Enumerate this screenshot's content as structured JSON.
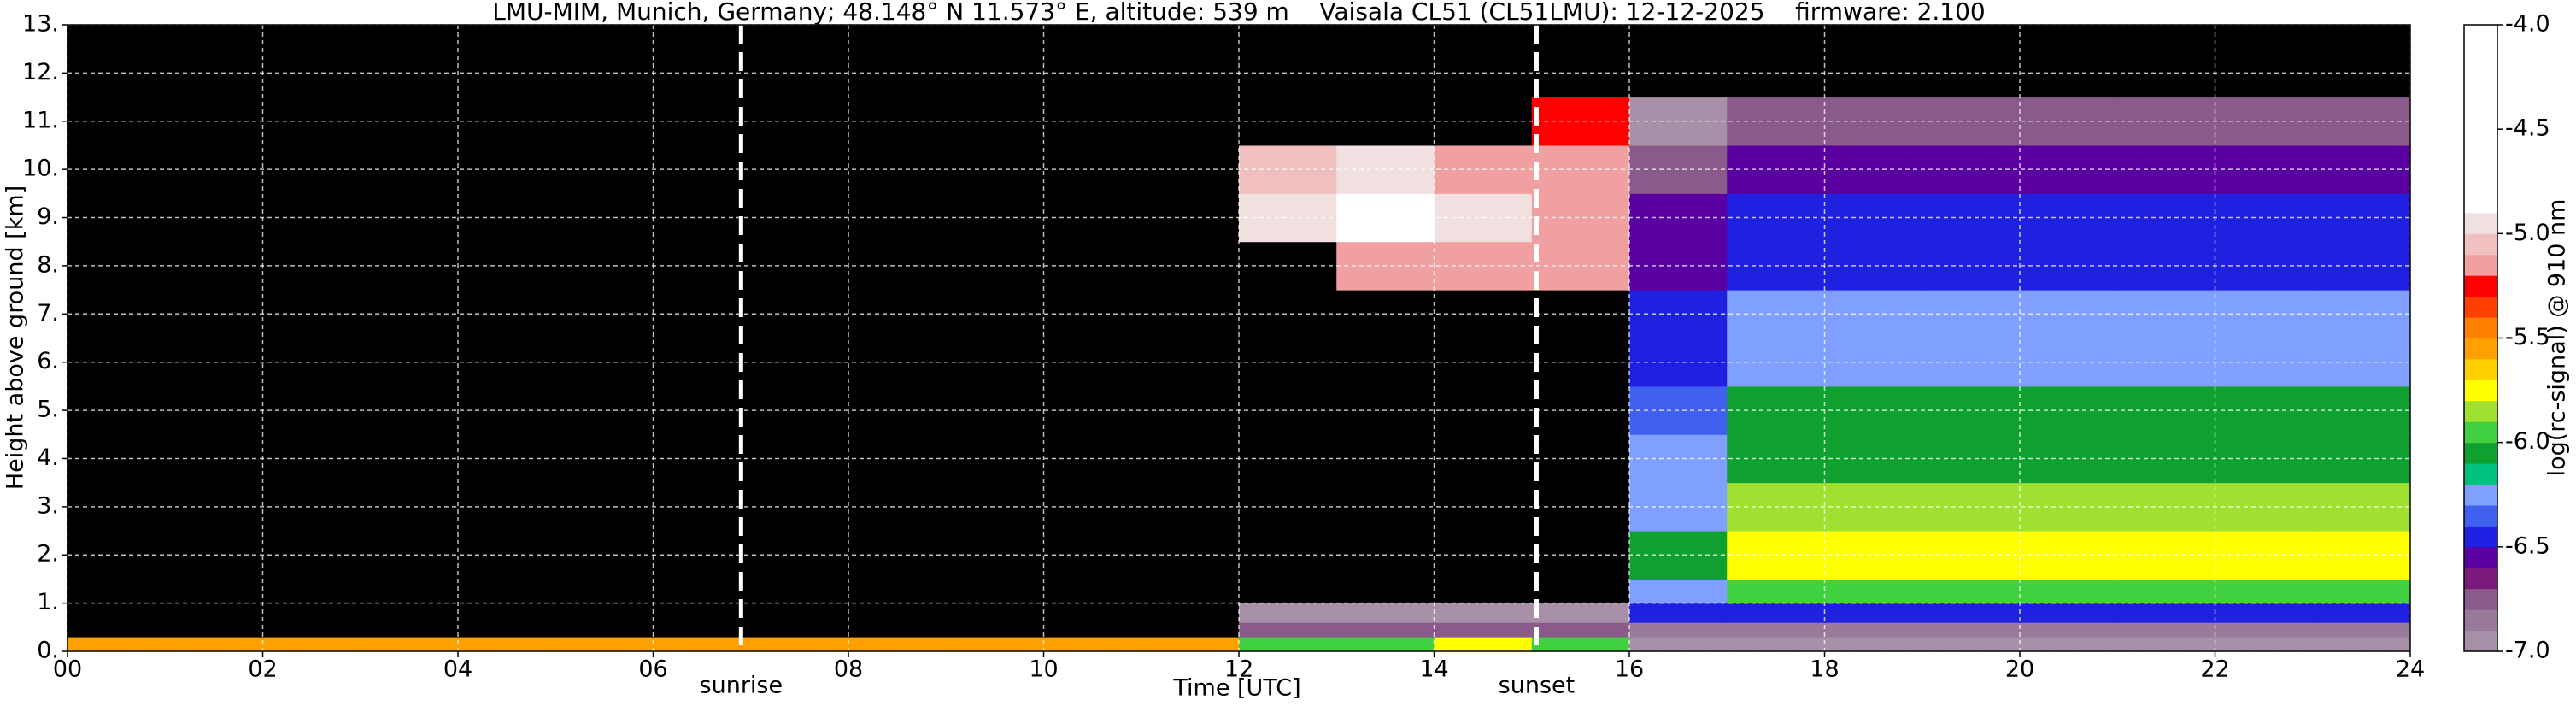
{
  "chart_data": {
    "type": "heatmap",
    "title": "LMU-MIM, Munich, Germany; 48.148° N 11.573° E, altitude: 539 m    Vaisala CL51 (CL51LMU): 12-12-2025    firmware: 2.100",
    "x_label": "Time [UTC]",
    "y_label": "Height above ground [km]",
    "colorbar_label": "log(rc-signal) @ 910 nm",
    "xlim": [
      0,
      24
    ],
    "ylim": [
      0,
      13
    ],
    "xticks": [
      {
        "value": 0,
        "label": "00"
      },
      {
        "value": 2,
        "label": "02"
      },
      {
        "value": 4,
        "label": "04"
      },
      {
        "value": 6,
        "label": "06"
      },
      {
        "value": 8,
        "label": "08"
      },
      10,
      12,
      14,
      16,
      18,
      20,
      22,
      24
    ],
    "yticks": [
      {
        "value": 0,
        "label": "0."
      },
      {
        "value": 1,
        "label": "1."
      },
      {
        "value": 2,
        "label": "2."
      },
      {
        "value": 3,
        "label": "3."
      },
      {
        "value": 4,
        "label": "4."
      },
      {
        "value": 5,
        "label": "5."
      },
      {
        "value": 6,
        "label": "6."
      },
      {
        "value": 7,
        "label": "7."
      },
      {
        "value": 8,
        "label": "8."
      },
      {
        "value": 9,
        "label": "9."
      },
      {
        "value": 10,
        "label": "10."
      },
      {
        "value": 11,
        "label": "11."
      },
      {
        "value": 12,
        "label": "12."
      },
      {
        "value": 13,
        "label": "13."
      }
    ],
    "grid": true,
    "clim": [
      -7,
      -4
    ],
    "cticks": [
      {
        "value": -4,
        "label": "-4.0"
      },
      {
        "value": -4.5,
        "label": "-4.5"
      },
      {
        "value": -5,
        "label": "-5.0"
      },
      {
        "value": -5.5,
        "label": "-5.5"
      },
      {
        "value": -6,
        "label": "-6.0"
      },
      {
        "value": -6.5,
        "label": "-6.5"
      },
      {
        "value": -7,
        "label": "-7.0"
      }
    ],
    "colors": [
      "#a890a8",
      "#9a7a9a",
      "#8a5a8a",
      "#7a1a7a",
      "#5a00a0",
      "#2020e0",
      "#4060f0",
      "#80a0ff",
      "#00c080",
      "#10a030",
      "#40d040",
      "#a0e030",
      "#ffff00",
      "#ffd000",
      "#ffa000",
      "#ff8000",
      "#ff4000",
      "#ff0000",
      "#f0a0a0",
      "#f0c0c0",
      "#f0e0e0",
      "#ffffff",
      "#ffffff",
      "#ffffff",
      "#ffffff",
      "#ffffff",
      "#ffffff",
      "#ffffff",
      "#ffffff",
      "#ffffff"
    ],
    "under_color": "#000000",
    "x_edges": [
      0,
      1,
      2,
      3,
      4,
      5,
      6,
      7,
      8,
      9,
      10,
      11,
      12,
      13,
      14,
      15,
      16,
      17,
      18,
      19,
      20,
      21,
      22,
      23,
      24
    ],
    "y_edges": [
      0,
      0.3,
      0.6,
      1,
      1.5,
      2.5,
      3.5,
      4.5,
      5.5,
      6.5,
      7.5,
      8.5,
      9.5,
      10.5,
      11.5,
      13
    ],
    "z": [
      [
        -5.6,
        -5.6,
        -5.6,
        -5.6,
        -5.6,
        -5.6,
        -5.6,
        -5.6,
        -5.6,
        -5.6,
        -5.6,
        -5.6,
        -5.9,
        -5.9,
        -5.8,
        -5.9,
        -6.95,
        -6.95,
        -6.95,
        -6.95,
        -6.95,
        -6.95,
        -6.95,
        -6.95
      ],
      [
        -7.5,
        -7.5,
        -7.5,
        -7.5,
        -7.5,
        -7.5,
        -7.5,
        -7.5,
        -7.5,
        -7.5,
        -7.5,
        -7.5,
        -6.7,
        -6.7,
        -6.7,
        -6.7,
        -6.85,
        -6.85,
        -6.85,
        -6.85,
        -6.85,
        -6.85,
        -6.85,
        -6.85
      ],
      [
        -7.5,
        -7.5,
        -7.5,
        -7.5,
        -7.5,
        -7.5,
        -7.5,
        -7.5,
        -7.5,
        -7.5,
        -7.5,
        -7.5,
        -6.9,
        -6.9,
        -6.9,
        -6.9,
        -6.45,
        -6.45,
        -6.45,
        -6.45,
        -6.45,
        -6.45,
        -6.45,
        -6.45
      ],
      [
        -7.5,
        -7.5,
        -7.5,
        -7.5,
        -7.5,
        -7.5,
        -7.5,
        -7.5,
        -7.5,
        -7.5,
        -7.5,
        -7.5,
        -7.5,
        -7.5,
        -7.5,
        -7.5,
        -6.2,
        -5.95,
        -5.95,
        -5.95,
        -5.95,
        -5.95,
        -5.95,
        -5.95
      ],
      [
        -7.5,
        -7.5,
        -7.5,
        -7.5,
        -7.5,
        -7.5,
        -7.5,
        -7.5,
        -7.5,
        -7.5,
        -7.5,
        -7.5,
        -7.5,
        -7.5,
        -7.5,
        -7.5,
        -6.1,
        -5.75,
        -5.75,
        -5.75,
        -5.75,
        -5.75,
        -5.75,
        -5.75
      ],
      [
        -7.5,
        -7.5,
        -7.5,
        -7.5,
        -7.5,
        -7.5,
        -7.5,
        -7.5,
        -7.5,
        -7.5,
        -7.5,
        -7.5,
        -7.5,
        -7.5,
        -7.5,
        -7.5,
        -6.2,
        -5.85,
        -5.85,
        -5.85,
        -5.85,
        -5.85,
        -5.85,
        -5.85
      ],
      [
        -7.5,
        -7.5,
        -7.5,
        -7.5,
        -7.5,
        -7.5,
        -7.5,
        -7.5,
        -7.5,
        -7.5,
        -7.5,
        -7.5,
        -7.5,
        -7.5,
        -7.5,
        -7.5,
        -6.3,
        -6.05,
        -6.05,
        -6.05,
        -6.05,
        -6.05,
        -6.05,
        -6.05
      ],
      [
        -7.5,
        -7.5,
        -7.5,
        -7.5,
        -7.5,
        -7.5,
        -7.5,
        -7.5,
        -7.5,
        -7.5,
        -7.5,
        -7.5,
        -7.5,
        -7.5,
        -7.5,
        -7.5,
        -6.35,
        -6.1,
        -6.1,
        -6.1,
        -6.1,
        -6.1,
        -6.1,
        -6.1
      ],
      [
        -7.5,
        -7.5,
        -7.5,
        -7.5,
        -7.5,
        -7.5,
        -7.5,
        -7.5,
        -7.5,
        -7.5,
        -7.5,
        -7.5,
        -7.5,
        -7.5,
        -7.5,
        -7.5,
        -6.45,
        -6.25,
        -6.25,
        -6.25,
        -6.25,
        -6.25,
        -6.25,
        -6.25
      ],
      [
        -7.5,
        -7.5,
        -7.5,
        -7.5,
        -7.5,
        -7.5,
        -7.5,
        -7.5,
        -7.5,
        -7.5,
        -7.5,
        -7.5,
        -7.5,
        -7.5,
        -7.5,
        -7.5,
        -6.5,
        -6.3,
        -6.3,
        -6.3,
        -6.3,
        -6.3,
        -6.3,
        -6.3
      ],
      [
        -7.5,
        -7.5,
        -7.5,
        -7.5,
        -7.5,
        -7.5,
        -7.5,
        -7.5,
        -7.5,
        -7.5,
        -7.5,
        -7.5,
        -7.5,
        -5.2,
        -5.2,
        -5.2,
        -6.6,
        -6.4,
        -6.4,
        -6.4,
        -6.4,
        -6.4,
        -6.4,
        -6.4
      ],
      [
        -7.5,
        -7.5,
        -7.5,
        -7.5,
        -7.5,
        -7.5,
        -7.5,
        -7.5,
        -7.5,
        -7.5,
        -7.5,
        -7.5,
        -5.0,
        -4.8,
        -4.9,
        -5.2,
        -6.6,
        -6.5,
        -6.5,
        -6.5,
        -6.5,
        -6.5,
        -6.5,
        -6.5
      ],
      [
        -7.5,
        -7.5,
        -7.5,
        -7.5,
        -7.5,
        -7.5,
        -7.5,
        -7.5,
        -7.5,
        -7.5,
        -7.5,
        -7.5,
        -5.1,
        -5.0,
        -5.2,
        -5.2,
        -6.7,
        -6.6,
        -6.6,
        -6.6,
        -6.6,
        -6.6,
        -6.6,
        -6.6
      ],
      [
        -7.5,
        -7.5,
        -7.5,
        -7.5,
        -7.5,
        -7.5,
        -7.5,
        -7.5,
        -7.5,
        -7.5,
        -7.5,
        -7.5,
        -7.5,
        -7.5,
        -7.5,
        -5.3,
        -6.9,
        -6.8,
        -6.8,
        -6.8,
        -6.8,
        -6.8,
        -6.8,
        -6.8
      ],
      [
        -7.5,
        -7.5,
        -7.5,
        -7.5,
        -7.5,
        -7.5,
        -7.5,
        -7.5,
        -7.5,
        -7.5,
        -7.5,
        -7.5,
        -7.5,
        -7.5,
        -7.5,
        -7.5,
        -7.5,
        -7.5,
        -7.5,
        -7.5,
        -7.5,
        -7.5,
        -7.5,
        -7.5
      ]
    ],
    "annotations": [
      {
        "text": "sunrise",
        "x": 6.9
      },
      {
        "text": "sunset",
        "x": 15.05
      }
    ]
  }
}
